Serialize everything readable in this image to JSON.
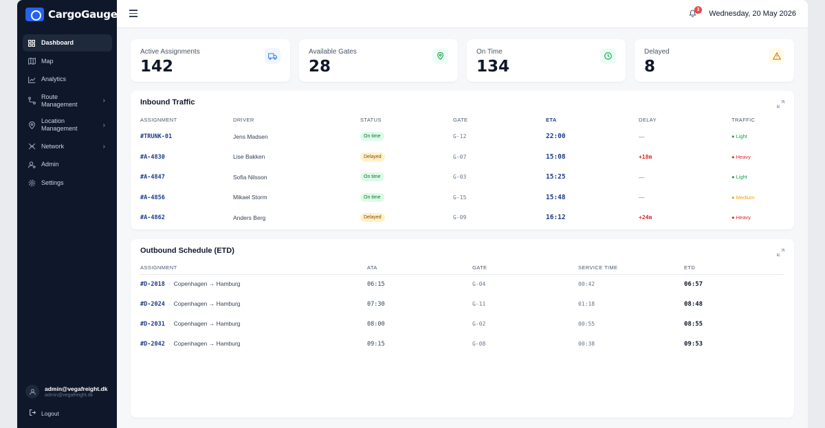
{
  "app": {
    "name": "CargoGauge"
  },
  "sidebar": {
    "items": [
      {
        "label": "Dashboard",
        "icon": "grid-icon"
      },
      {
        "label": "Map",
        "icon": "map-icon"
      },
      {
        "label": "Analytics",
        "icon": "chart-line-icon"
      },
      {
        "label": "Route\nManagement",
        "icon": "route-icon"
      },
      {
        "label": "Location\nManagement",
        "icon": "pin-icon"
      },
      {
        "label": "Network",
        "icon": "network-icon"
      },
      {
        "label": "Admin",
        "icon": "user-gear-icon"
      },
      {
        "label": "Settings",
        "icon": "gear-icon"
      }
    ],
    "user": {
      "name": "admin@vegafreight.dk",
      "email": "admin@vegafreight.dk"
    },
    "logout_label": "Logout"
  },
  "header": {
    "date": "Wednesday, 20 May 2026",
    "notifications": "3"
  },
  "stats": [
    {
      "label": "Active Assignments",
      "value": "142",
      "icon": "truck-icon",
      "color": "#3b82f6",
      "bg": "#eff6ff"
    },
    {
      "label": "Available Gates",
      "value": "28",
      "icon": "map-pin-icon",
      "color": "#16a34a",
      "bg": "#ecfdf5"
    },
    {
      "label": "On Time",
      "value": "134",
      "icon": "clock-icon",
      "color": "#16a34a",
      "bg": "#ecfdf5"
    },
    {
      "label": "Delayed",
      "value": "8",
      "icon": "warning-icon",
      "color": "#d97706",
      "bg": "#fffbeb"
    }
  ],
  "inbound": {
    "title": "Inbound Traffic",
    "columns": [
      "ASSIGNMENT",
      "DRIVER",
      "STATUS",
      "GATE",
      "ETA",
      "DELAY",
      "TRAFFIC"
    ],
    "rows": [
      {
        "id": "#TRUNK-01",
        "driver": "Jens Madsen",
        "status": "On time",
        "gate": "G-12",
        "eta": "22:00",
        "delay": "—",
        "traffic": "● Light"
      },
      {
        "id": "#A-4830",
        "driver": "Lise Bakken",
        "status": "Delayed",
        "gate": "G-07",
        "eta": "15:08",
        "delay": "+18m",
        "traffic": "● Heavy"
      },
      {
        "id": "#A-4847",
        "driver": "Sofia Nilsson",
        "status": "On time",
        "gate": "G-03",
        "eta": "15:25",
        "delay": "—",
        "traffic": "● Light"
      },
      {
        "id": "#A-4856",
        "driver": "Mikael Storm",
        "status": "On time",
        "gate": "G-15",
        "eta": "15:48",
        "delay": "—",
        "traffic": "● Medium"
      },
      {
        "id": "#A-4862",
        "driver": "Anders Berg",
        "status": "Delayed",
        "gate": "G-09",
        "eta": "16:12",
        "delay": "+24m",
        "traffic": "● Heavy"
      }
    ]
  },
  "outbound": {
    "title": "Outbound Schedule (ETD)",
    "columns": [
      "ASSIGNMENT",
      "ATA",
      "GATE",
      "SERVICE TIME",
      "ETD"
    ],
    "rows": [
      {
        "id": "#D-2018",
        "route": "Copenhagen → Hamburg",
        "ata": "06:15",
        "gate": "G-04",
        "service": "00:42",
        "etd": "06:57"
      },
      {
        "id": "#D-2024",
        "route": "Copenhagen → Hamburg",
        "ata": "07:30",
        "gate": "G-11",
        "service": "01:18",
        "etd": "08:48"
      },
      {
        "id": "#D-2031",
        "route": "Copenhagen → Hamburg",
        "ata": "08:00",
        "gate": "G-02",
        "service": "00:55",
        "etd": "08:55"
      },
      {
        "id": "#D-2042",
        "route": "Copenhagen → Hamburg",
        "ata": "09:15",
        "gate": "G-08",
        "service": "00:38",
        "etd": "09:53"
      }
    ]
  },
  "colors": {
    "accent": "#1e3a8a",
    "sidebar": "#0f172a",
    "danger": "#dc2626",
    "light": "#16a34a",
    "medium": "#f59e0b",
    "heavy": "#dc2626"
  }
}
